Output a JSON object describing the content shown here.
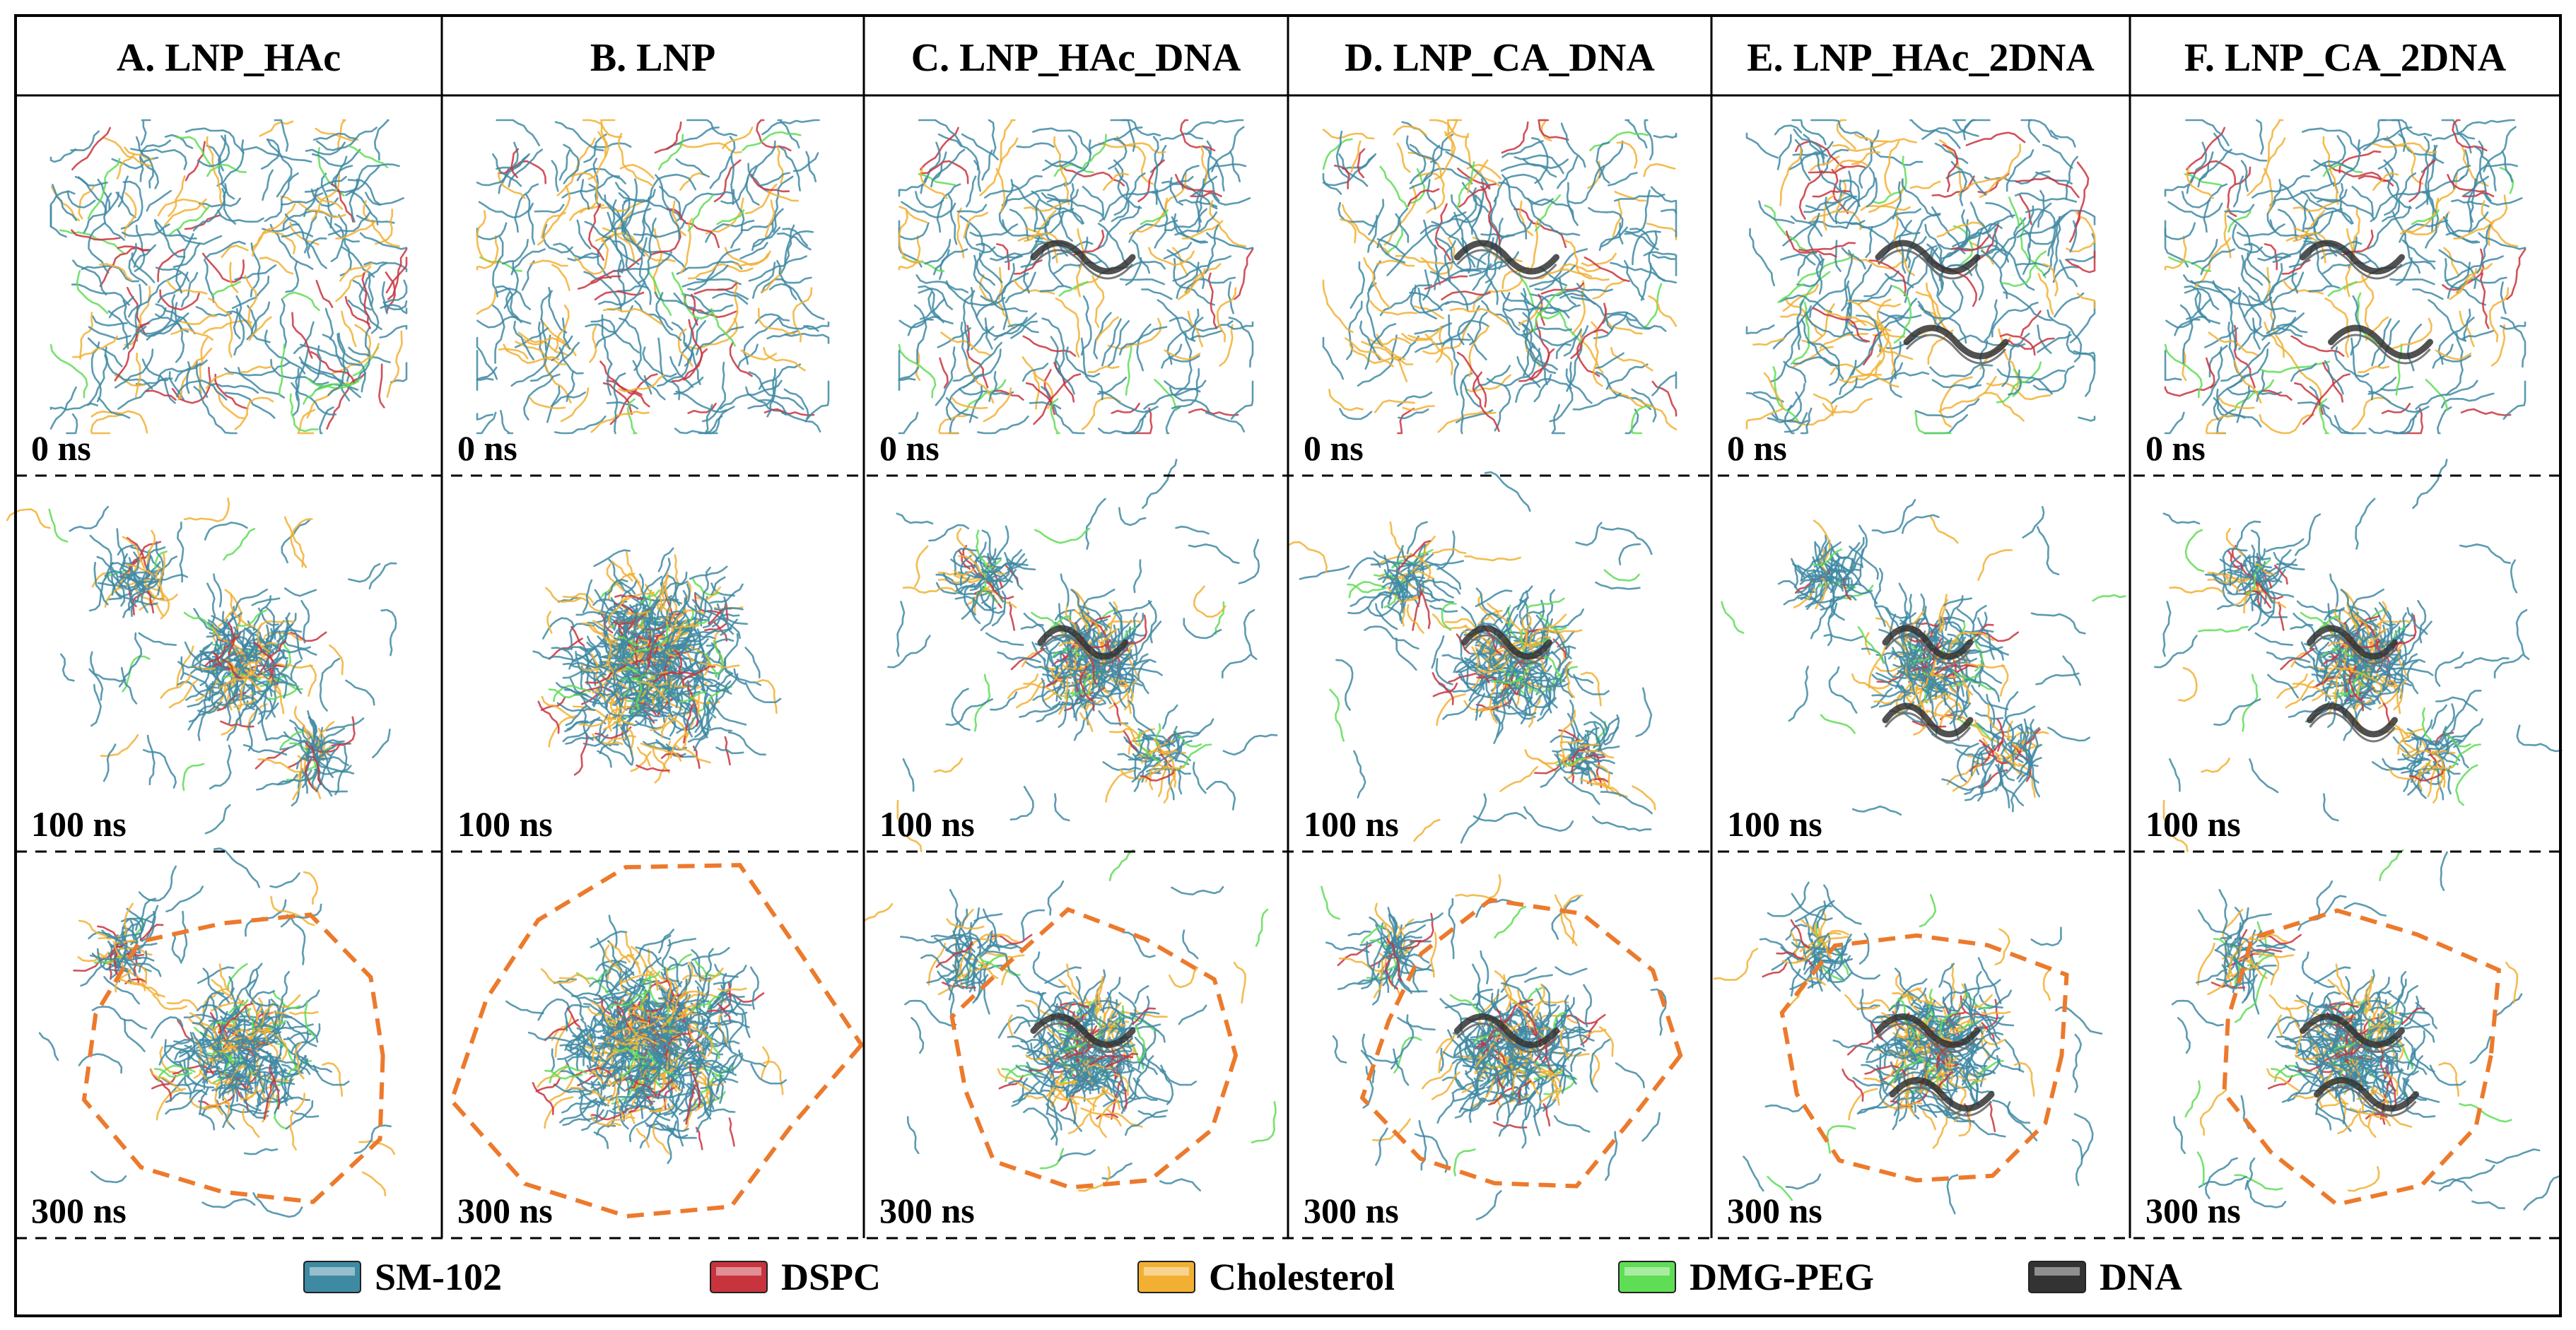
{
  "columns": [
    {
      "id": "A",
      "title": "A. LNP_HAc",
      "has_dna": false,
      "dna_count": 0
    },
    {
      "id": "B",
      "title": "B. LNP",
      "has_dna": false,
      "dna_count": 0
    },
    {
      "id": "C",
      "title": "C. LNP_HAc_DNA",
      "has_dna": true,
      "dna_count": 1
    },
    {
      "id": "D",
      "title": "D. LNP_CA_DNA",
      "has_dna": true,
      "dna_count": 1
    },
    {
      "id": "E",
      "title": "E. LNP_HAc_2DNA",
      "has_dna": true,
      "dna_count": 2
    },
    {
      "id": "F",
      "title": "F. LNP_CA_2DNA",
      "has_dna": true,
      "dna_count": 2
    }
  ],
  "rows": [
    {
      "time_label": "0 ns",
      "state": "initial_box"
    },
    {
      "time_label": "100 ns",
      "state": "partial_aggregation"
    },
    {
      "time_label": "300 ns",
      "state": "aggregate_outlined"
    }
  ],
  "legend": [
    {
      "name": "SM-102",
      "color": "#3f8aa3"
    },
    {
      "name": "DSPC",
      "color": "#c8343e"
    },
    {
      "name": "Cholesterol",
      "color": "#f2b033"
    },
    {
      "name": "DMG-PEG",
      "color": "#5fdd55"
    },
    {
      "name": "DNA",
      "color": "#333333"
    }
  ],
  "colors": {
    "sm102": "#3f8aa3",
    "dspc": "#c8343e",
    "cholesterol": "#f2b033",
    "dmgpeg": "#5fdd55",
    "dna": "#333333",
    "outline": "#ec7a2c",
    "border": "#000000"
  }
}
